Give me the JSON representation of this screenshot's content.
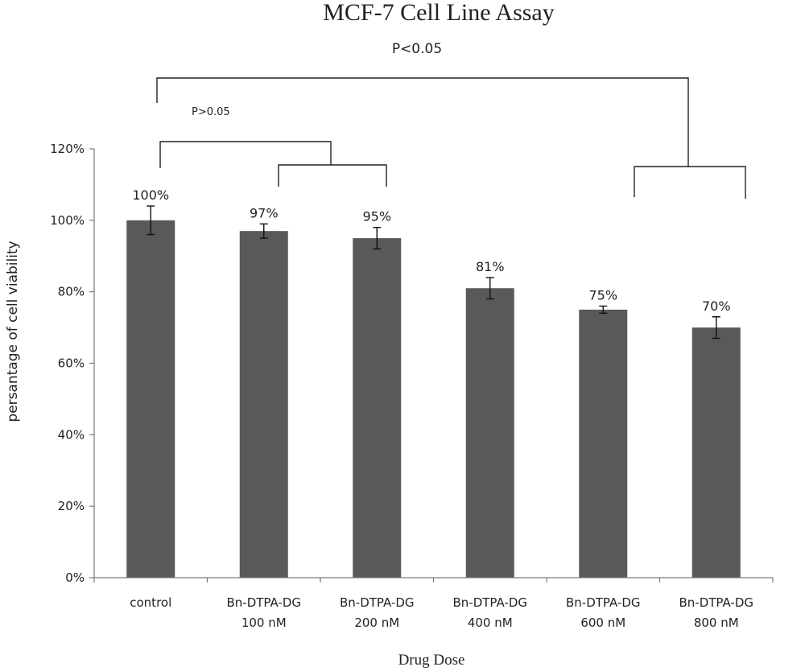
{
  "chart_data": {
    "type": "bar",
    "title": "MCF-7 Cell Line Assay",
    "xlabel": "Drug Dose",
    "ylabel": "persantage of cell viability",
    "ylim": [
      0,
      120
    ],
    "yticks": [
      0,
      20,
      40,
      60,
      80,
      100,
      120
    ],
    "ytick_labels": [
      "0%",
      "20%",
      "40%",
      "60%",
      "80%",
      "100%",
      "120%"
    ],
    "grid": false,
    "bar_color": "#595959",
    "categories": [
      [
        "control"
      ],
      [
        "Bn-DTPA-DG",
        "100 nM"
      ],
      [
        "Bn-DTPA-DG",
        "200 nM"
      ],
      [
        "Bn-DTPA-DG",
        "400 nM"
      ],
      [
        "Bn-DTPA-DG",
        "600 nM"
      ],
      [
        "Bn-DTPA-DG",
        "800 nM"
      ]
    ],
    "values": [
      100,
      97,
      95,
      81,
      75,
      70
    ],
    "data_labels": [
      "100%",
      "97%",
      "95%",
      "81%",
      "75%",
      "70%"
    ],
    "errors": [
      4,
      2,
      3,
      3,
      1,
      3
    ],
    "annotations": {
      "outer_p": "P<0.05",
      "inner_p": "P>0.05"
    }
  }
}
